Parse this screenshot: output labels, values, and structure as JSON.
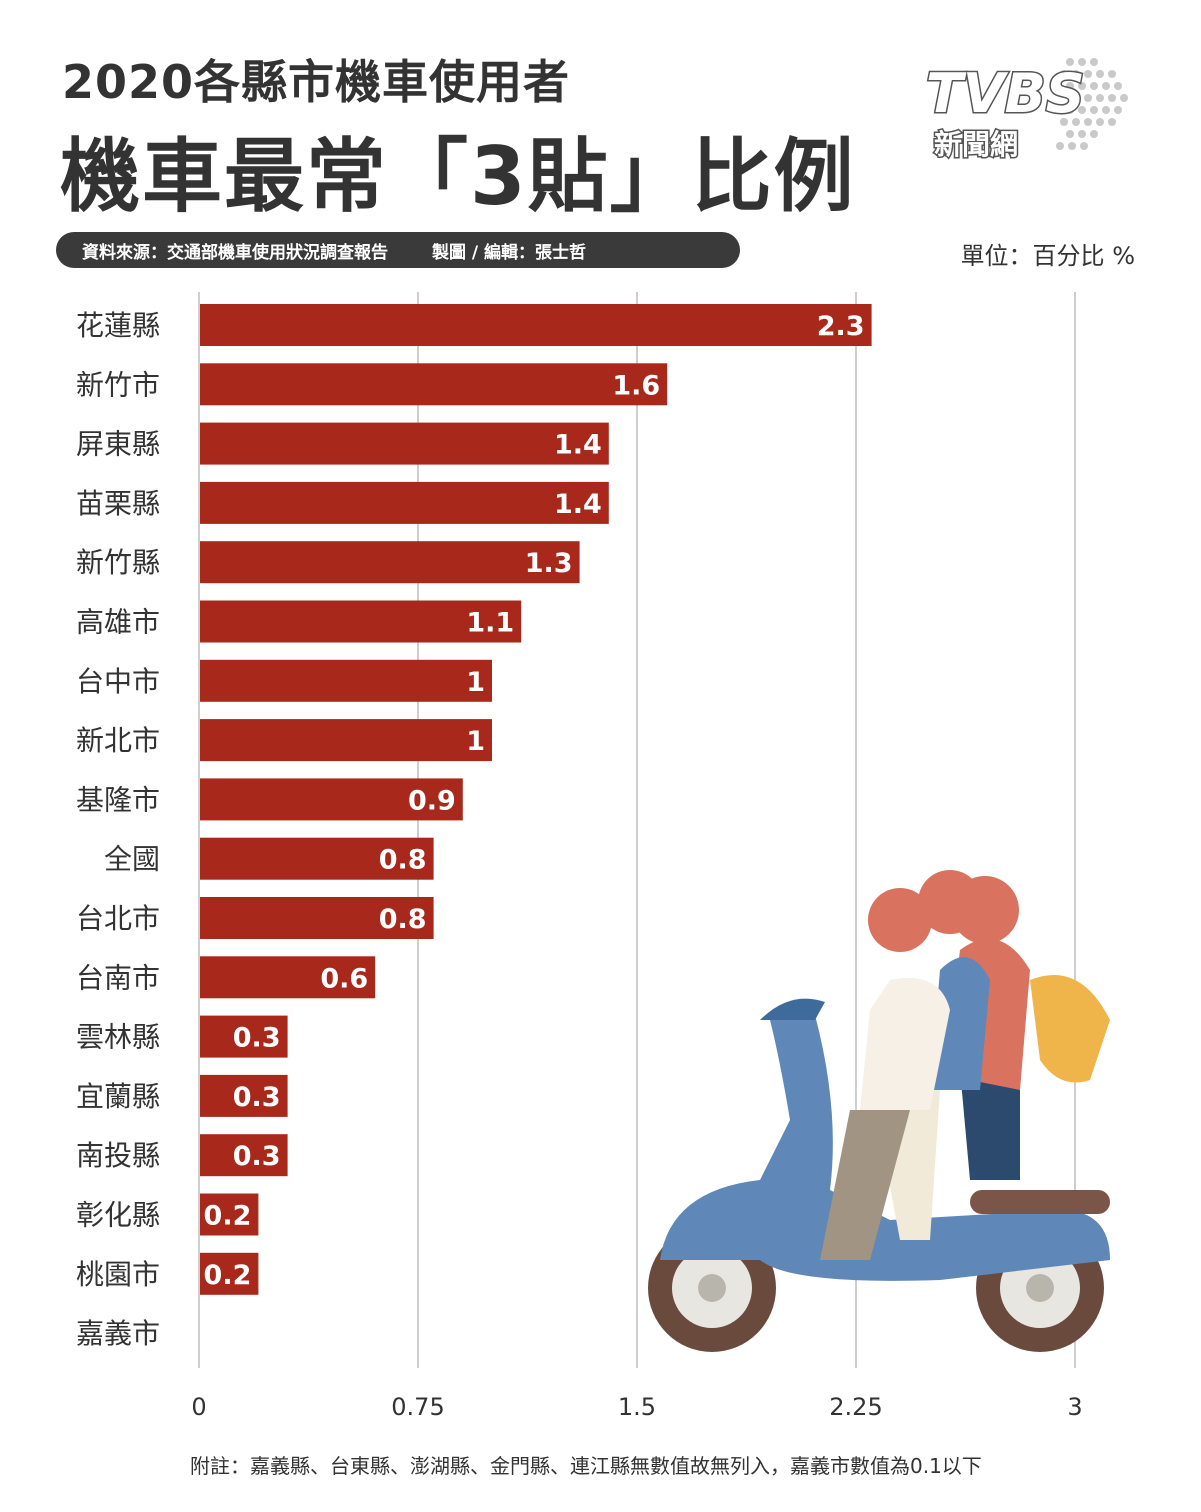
{
  "header": {
    "title_line1": "2020各縣市機車使用者",
    "title_line2": "機車最常「3貼」比例",
    "source": "資料來源：交通部機車使用狀況調查報告",
    "credit": "製圖 / 編輯：張士哲",
    "unit": "單位：百分比 %"
  },
  "logo": {
    "brand": "TVBS",
    "sub": "新聞網"
  },
  "footnote": "附註：嘉義縣、台東縣、澎湖縣、金門縣、連江縣無數值故無列入，嘉義市數值為0.1以下",
  "colors": {
    "bar": "#a8291c",
    "grid": "#bdbdbd",
    "text": "#333333"
  },
  "chart_data": {
    "type": "bar",
    "orientation": "horizontal",
    "categories": [
      "花蓮縣",
      "新竹市",
      "屏東縣",
      "苗栗縣",
      "新竹縣",
      "高雄市",
      "台中市",
      "新北市",
      "基隆市",
      "全國",
      "台北市",
      "台南市",
      "雲林縣",
      "宜蘭縣",
      "南投縣",
      "彰化縣",
      "桃園市",
      "嘉義市"
    ],
    "values": [
      2.3,
      1.6,
      1.4,
      1.4,
      1.3,
      1.1,
      1,
      1,
      0.9,
      0.8,
      0.8,
      0.6,
      0.3,
      0.3,
      0.3,
      0.2,
      0.2,
      null
    ],
    "value_labels": [
      "2.3",
      "1.6",
      "1.4",
      "1.4",
      "1.3",
      "1.1",
      "1",
      "1",
      "0.9",
      "0.8",
      "0.8",
      "0.6",
      "0.3",
      "0.3",
      "0.3",
      "0.2",
      "0.2",
      ""
    ],
    "xticks": [
      "0",
      "0.75",
      "1.5",
      "2.25",
      "3"
    ],
    "xlim": [
      0,
      3
    ],
    "grid": "vertical",
    "legend": "none"
  }
}
